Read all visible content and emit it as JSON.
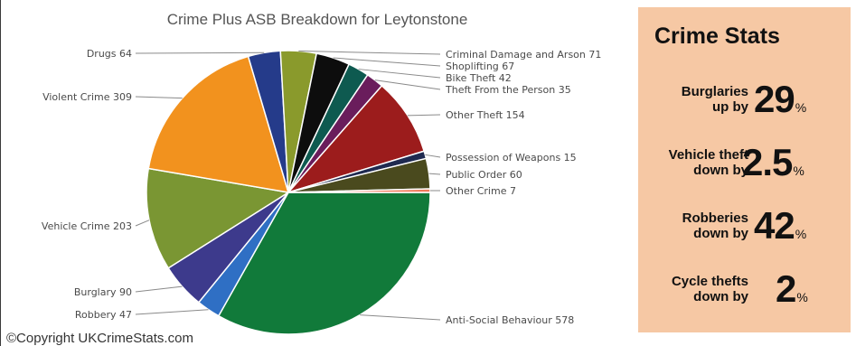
{
  "chart_data": {
    "type": "pie",
    "title": "Crime Plus ASB Breakdown for Leytonstone",
    "slices": [
      {
        "label": "Anti-Social Behaviour 578",
        "category": "Anti-Social Behaviour",
        "value": 578,
        "color": "#117a3a"
      },
      {
        "label": "Robbery 47",
        "category": "Robbery",
        "value": 47,
        "color": "#2f6fc4"
      },
      {
        "label": "Burglary 90",
        "category": "Burglary",
        "value": 90,
        "color": "#3d3a8c"
      },
      {
        "label": "Vehicle Crime 203",
        "category": "Vehicle Crime",
        "value": 203,
        "color": "#7a9633"
      },
      {
        "label": "Violent Crime 309",
        "category": "Violent Crime",
        "value": 309,
        "color": "#f2921e"
      },
      {
        "label": "Drugs 64",
        "category": "Drugs",
        "value": 64,
        "color": "#253b8a"
      },
      {
        "label": "Criminal Damage and Arson 71",
        "category": "Criminal Damage and Arson",
        "value": 71,
        "color": "#8a9a2c"
      },
      {
        "label": "Shoplifting 67",
        "category": "Shoplifting",
        "value": 67,
        "color": "#0d0d0d"
      },
      {
        "label": "Bike Theft 42",
        "category": "Bike Theft",
        "value": 42,
        "color": "#0e5a50"
      },
      {
        "label": "Theft From the Person 35",
        "category": "Theft From the Person",
        "value": 35,
        "color": "#6a1d5c"
      },
      {
        "label": "Other Theft 154",
        "category": "Other Theft",
        "value": 154,
        "color": "#9c1c1c"
      },
      {
        "label": "Possession of Weapons 15",
        "category": "Possession of Weapons",
        "value": 15,
        "color": "#1f2a50"
      },
      {
        "label": "Public Order 60",
        "category": "Public Order",
        "value": 60,
        "color": "#4a4a1e"
      },
      {
        "label": "Other Crime 7",
        "category": "Other Crime",
        "value": 7,
        "color": "#f07a5a"
      }
    ]
  },
  "copyright": "©Copyright UKCrimeStats.com",
  "stats_panel": {
    "title": "Crime Stats",
    "background": "#f6c8a4",
    "items": [
      {
        "label_line1": "Burglaries",
        "label_line2": "up by",
        "value": "29",
        "unit": "%"
      },
      {
        "label_line1": "Vehicle theft",
        "label_line2": "down by",
        "value": "2.5",
        "unit": "%"
      },
      {
        "label_line1": "Robberies",
        "label_line2": "down by",
        "value": "42",
        "unit": "%"
      },
      {
        "label_line1": "Cycle thefts",
        "label_line2": "down by",
        "value": "2",
        "unit": "%"
      }
    ]
  }
}
